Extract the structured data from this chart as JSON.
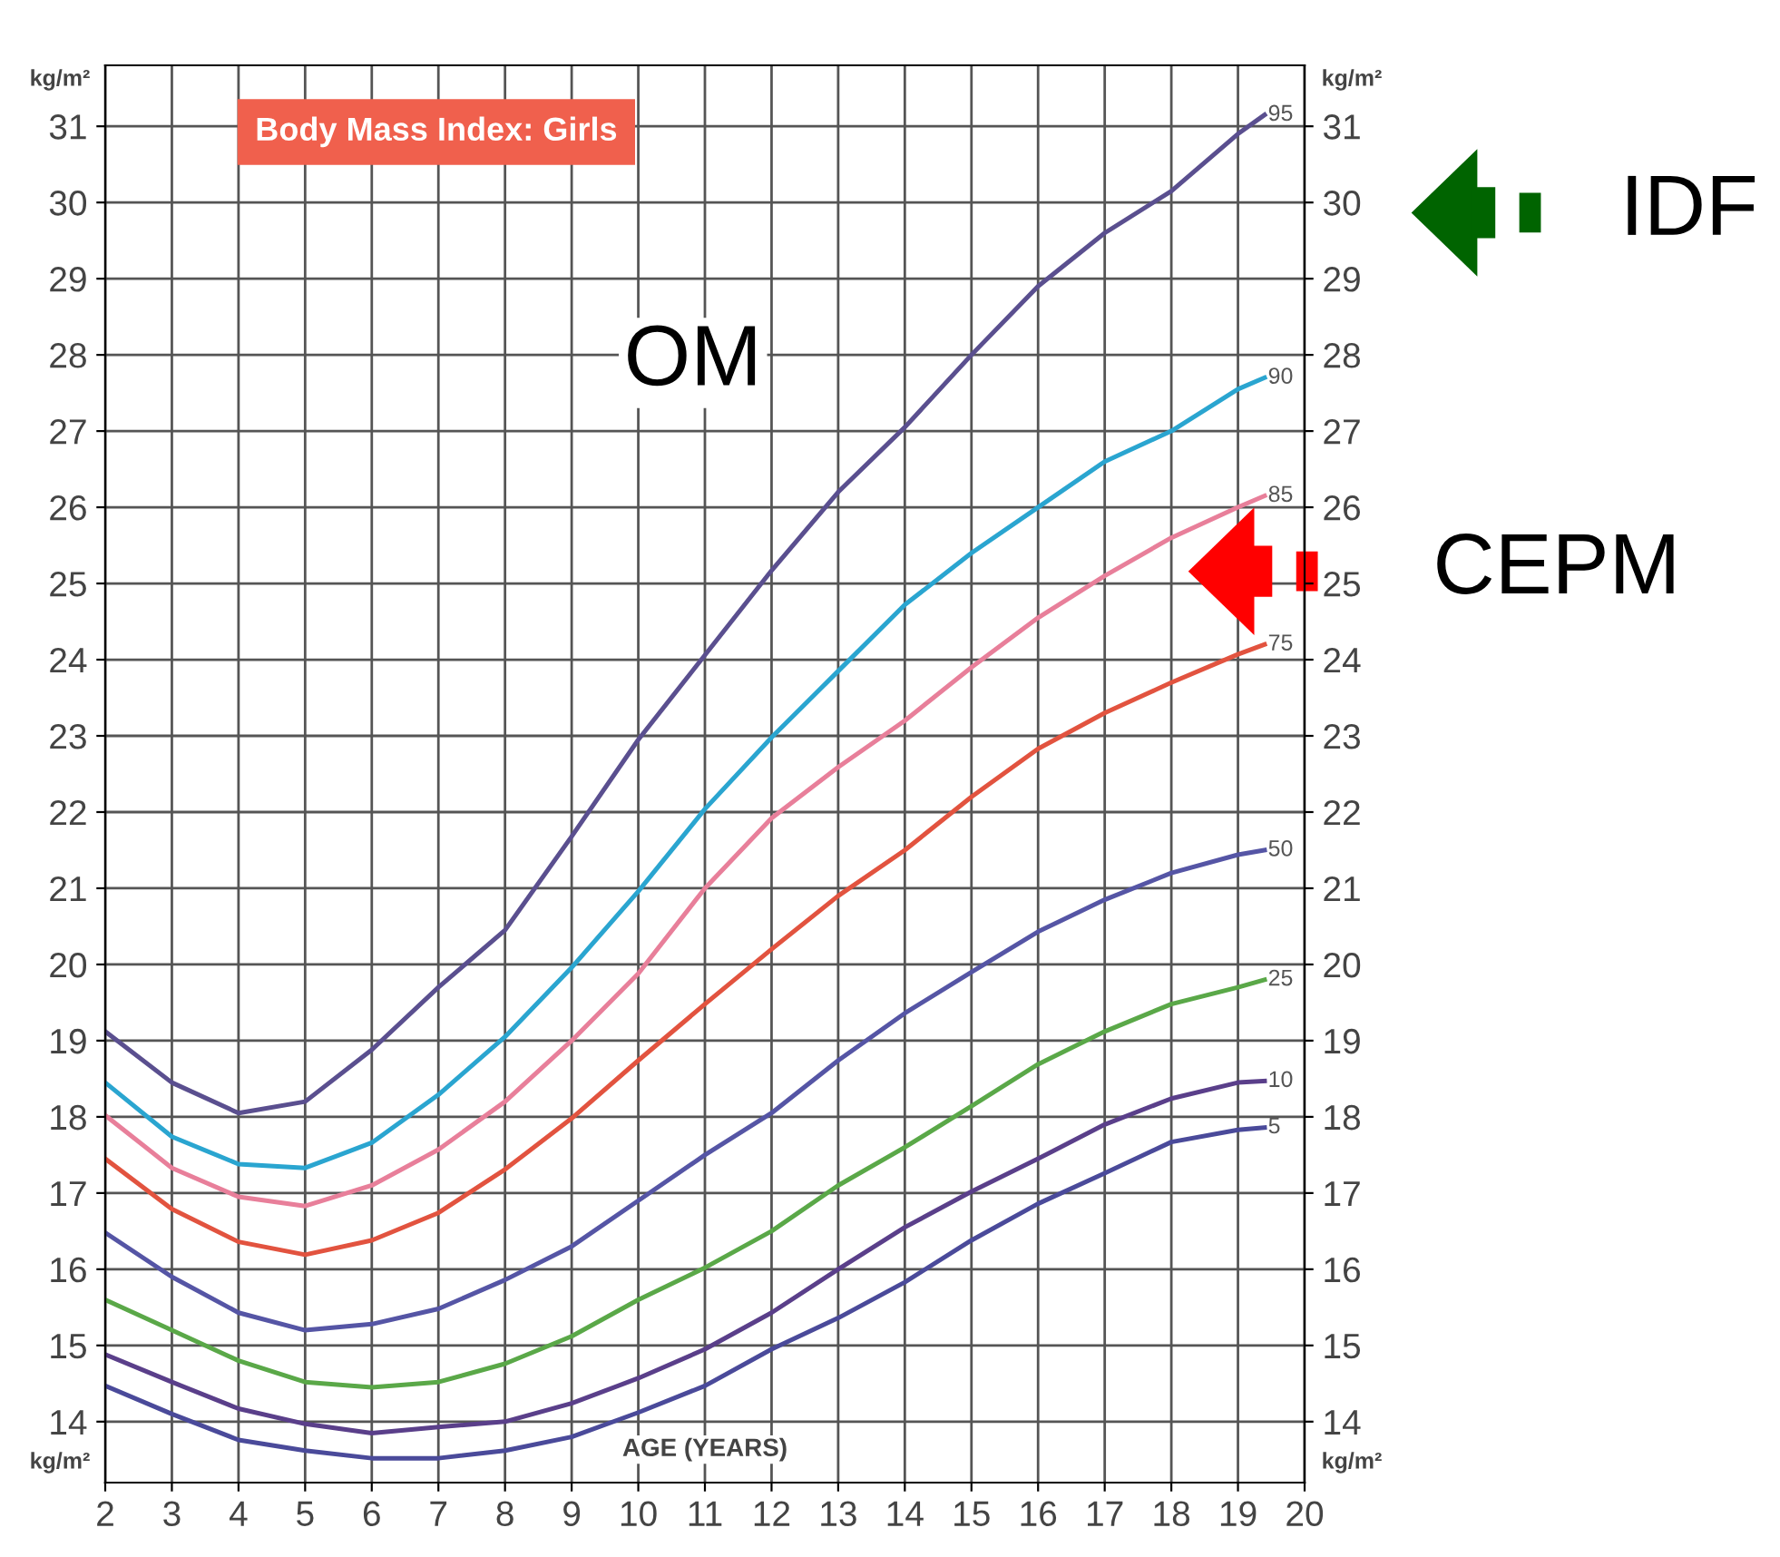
{
  "chart_data": {
    "type": "line",
    "title": "Body Mass Index: Girls",
    "xlabel": "AGE (YEARS)",
    "ylabel": "kg/m²",
    "y2label": "kg/m²",
    "x": [
      2,
      3,
      4,
      5,
      6,
      7,
      8,
      9,
      10,
      11,
      12,
      13,
      14,
      15,
      16,
      17,
      18,
      19,
      19.4
    ],
    "series": [
      {
        "name": "95",
        "color": "#5a4f8f",
        "values": [
          19.12,
          18.45,
          18.05,
          18.2,
          18.88,
          19.7,
          20.45,
          21.68,
          22.95,
          24.06,
          25.17,
          26.2,
          27.05,
          28.0,
          28.9,
          29.6,
          30.15,
          30.9,
          31.15
        ]
      },
      {
        "name": "90",
        "color": "#2aa5d0",
        "values": [
          18.45,
          17.74,
          17.38,
          17.33,
          17.66,
          18.29,
          19.05,
          19.96,
          20.96,
          22.04,
          22.98,
          23.85,
          24.72,
          25.4,
          26.0,
          26.6,
          27.0,
          27.55,
          27.7
        ]
      },
      {
        "name": "85",
        "color": "#e87f9a",
        "values": [
          18.02,
          17.33,
          16.95,
          16.83,
          17.1,
          17.57,
          18.2,
          19.0,
          19.88,
          21.0,
          21.92,
          22.59,
          23.2,
          23.9,
          24.55,
          25.1,
          25.6,
          26.0,
          26.15
        ]
      },
      {
        "name": "75",
        "color": "#e2533f",
        "values": [
          17.45,
          16.79,
          16.36,
          16.19,
          16.38,
          16.74,
          17.31,
          17.98,
          18.74,
          19.48,
          20.2,
          20.9,
          21.5,
          22.2,
          22.83,
          23.3,
          23.7,
          24.07,
          24.2
        ]
      },
      {
        "name": "50",
        "color": "#5555a5",
        "values": [
          16.48,
          15.9,
          15.43,
          15.2,
          15.28,
          15.48,
          15.86,
          16.3,
          16.9,
          17.5,
          18.05,
          18.74,
          19.36,
          19.9,
          20.43,
          20.85,
          21.2,
          21.44,
          21.5
        ]
      },
      {
        "name": "25",
        "color": "#5aa848",
        "values": [
          15.6,
          15.2,
          14.8,
          14.52,
          14.45,
          14.52,
          14.76,
          15.12,
          15.6,
          16.02,
          16.5,
          17.1,
          17.6,
          18.14,
          18.69,
          19.12,
          19.48,
          19.7,
          19.8
        ]
      },
      {
        "name": "10",
        "color": "#5a3f8a",
        "values": [
          14.88,
          14.52,
          14.17,
          13.97,
          13.85,
          13.93,
          14.0,
          14.24,
          14.57,
          14.95,
          15.43,
          16.0,
          16.55,
          17.02,
          17.45,
          17.9,
          18.24,
          18.45,
          18.47
        ]
      },
      {
        "name": "5",
        "color": "#4a4a9a",
        "values": [
          14.47,
          14.1,
          13.76,
          13.62,
          13.52,
          13.52,
          13.62,
          13.8,
          14.12,
          14.47,
          14.95,
          15.36,
          15.83,
          16.38,
          16.86,
          17.26,
          17.67,
          17.83,
          17.86
        ]
      }
    ],
    "xlim": [
      2,
      20
    ],
    "xticks": [
      2,
      3,
      4,
      5,
      6,
      7,
      8,
      9,
      10,
      11,
      12,
      13,
      14,
      15,
      16,
      17,
      18,
      19,
      20
    ],
    "ylim": [
      13.2,
      31.8
    ],
    "yticks": [
      14,
      15,
      16,
      17,
      18,
      19,
      20,
      21,
      22,
      23,
      24,
      25,
      26,
      27,
      28,
      29,
      30,
      31
    ],
    "y2lim": [
      13.2,
      31.8
    ],
    "y2ticks": [
      14,
      15,
      16,
      17,
      18,
      19,
      20,
      21,
      22,
      23,
      24,
      25,
      26,
      27,
      28,
      29,
      30,
      31
    ],
    "grid": true,
    "legend": false,
    "marker": "none",
    "line_style": "solid",
    "annotations": [
      "OM",
      "IDF",
      "CEPM"
    ]
  }
}
